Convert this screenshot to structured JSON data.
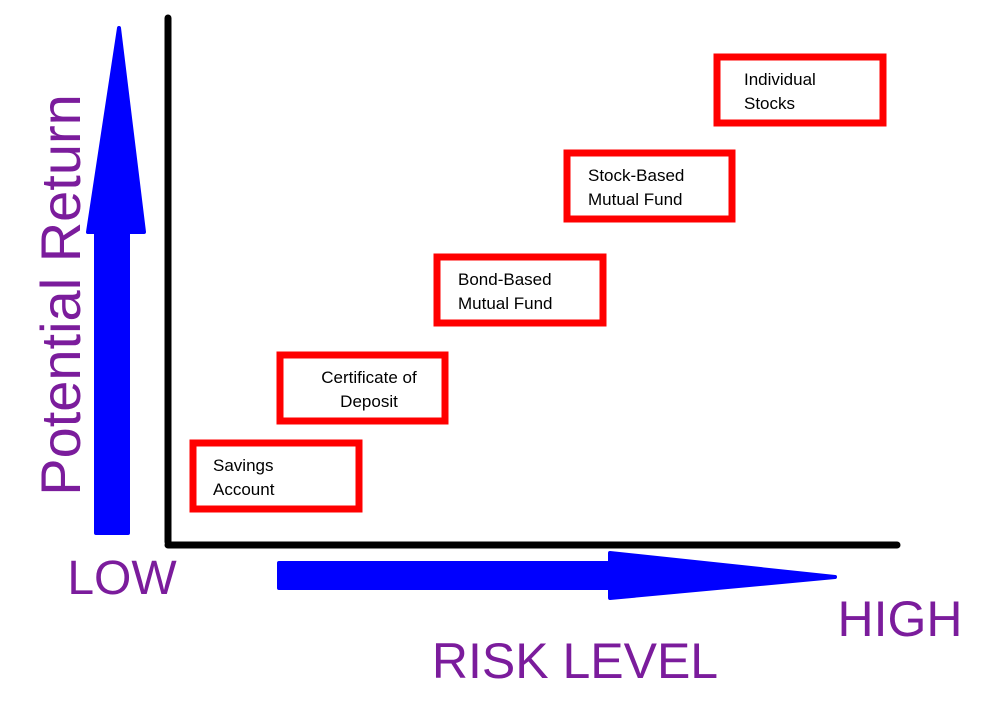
{
  "y_axis_label": "Potential Return",
  "x_axis_label": "RISK LEVEL",
  "low_label": "LOW",
  "high_label": "HIGH",
  "nodes": [
    {
      "lines": [
        "Savings",
        "Account"
      ]
    },
    {
      "lines": [
        "Certificate of",
        "Deposit"
      ]
    },
    {
      "lines": [
        "Bond-Based",
        "Mutual Fund"
      ]
    },
    {
      "lines": [
        "Stock-Based",
        "Mutual Fund"
      ]
    },
    {
      "lines": [
        "Individual",
        "Stocks"
      ]
    }
  ]
}
